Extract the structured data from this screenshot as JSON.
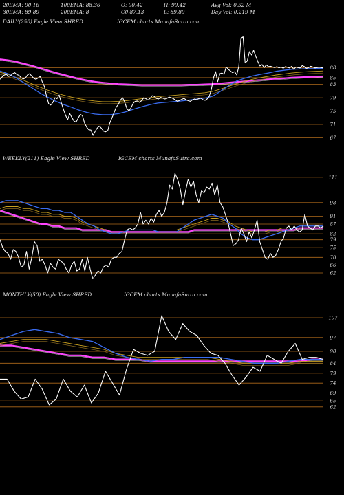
{
  "header": {
    "row1": [
      "20EMA: 90.16",
      "100EMA: 88.36",
      "O: 90.42",
      "H: 90.42",
      "Avg Vol: 0.52  M"
    ],
    "row2": [
      "30EMA: 89.89",
      "200EMA: 8",
      "C0.87.13",
      "L: 89.89",
      "Day Vol: 0.219 M"
    ]
  },
  "panels": [
    {
      "left": "DAILY(250) Eagle   View  SHRED",
      "right": "IGCEM charts MunafaSutra.com"
    },
    {
      "left": "WEEKLY(211) Eagle   View  SHRED",
      "right": "IGCEM charts MunafaSutra.com"
    },
    {
      "left": "MONTHLY(50) Eagle   View  SHRED",
      "right": "IGCEM charts MunafaSutra.com"
    }
  ],
  "colors": {
    "background": "#000000",
    "price": "#ffffff",
    "ema_fast": "#3a6cf0",
    "ema_slow": "#ff44ff",
    "ema_gold": "#c8a020",
    "level_line": "#b06a1a"
  },
  "chart_data": [
    {
      "type": "line",
      "title": "DAILY(250)",
      "ylim": [
        64,
        100
      ],
      "levels": [
        88,
        85,
        83,
        79,
        75,
        71,
        67
      ],
      "series": [
        {
          "role": "price",
          "values": [
            84.5,
            85.2,
            85.8,
            86.0,
            85.4,
            85.6,
            86.2,
            86.5,
            85.9,
            85.7,
            85.0,
            84.6,
            84.9,
            85.8,
            86.2,
            85.5,
            84.8,
            84.5,
            84.9,
            85.4,
            83.8,
            82.4,
            79.5,
            77.2,
            76.8,
            77.6,
            79.0,
            78.7,
            79.8,
            77.5,
            75.5,
            73.8,
            72.4,
            74.2,
            73.1,
            72.0,
            71.7,
            72.9,
            74.0,
            73.6,
            71.4,
            70.2,
            69.4,
            69.3,
            67.7,
            68.9,
            69.9,
            70.5,
            69.8,
            69.0,
            68.8,
            69.2,
            71.5,
            73.0,
            74.6,
            76.2,
            77.0,
            78.3,
            79.0,
            77.7,
            75.8,
            75.0,
            76.0,
            77.3,
            77.9,
            78.0,
            77.6,
            78.1,
            79.0,
            78.7,
            78.3,
            78.8,
            79.6,
            79.4,
            78.8,
            78.6,
            79.1,
            78.9,
            78.6,
            78.8,
            79.2,
            79.0,
            78.7,
            78.3,
            77.9,
            78.2,
            78.5,
            78.8,
            78.4,
            78.1,
            77.9,
            78.3,
            78.6,
            78.4,
            78.7,
            78.9,
            78.4,
            78.2,
            78.6,
            79.4,
            81.5,
            85.0,
            86.8,
            83.8,
            86.2,
            86.4,
            86.0,
            88.2,
            87.5,
            87.0,
            86.5,
            86.8,
            85.8,
            88.4,
            96.8,
            97.2,
            89.4,
            90.0,
            92.8,
            91.8,
            93.2,
            91.4,
            89.8,
            88.5,
            88.9,
            88.0,
            88.8,
            88.3,
            88.4,
            88.2,
            88.0,
            88.3,
            87.9,
            88.2,
            87.8,
            88.3,
            88.1,
            87.9,
            88.4,
            87.5,
            88.2,
            88.0,
            87.9,
            88.6,
            88.3,
            87.8,
            88.0,
            88.4,
            88.2,
            87.9,
            88.0,
            88.1,
            88.0,
            87.9
          ]
        },
        {
          "role": "ema_fast",
          "values": [
            87.0,
            86.2,
            85.0,
            83.5,
            82.0,
            80.5,
            79.2,
            78.0,
            77.0,
            76.2,
            75.3,
            74.6,
            74.1,
            73.9,
            73.9,
            74.2,
            74.8,
            75.6,
            76.3,
            76.9,
            77.4,
            77.6,
            77.8,
            78.0,
            78.3,
            78.6,
            78.9,
            79.5,
            81.0,
            82.6,
            84.0,
            84.8,
            85.5,
            86.0,
            86.4,
            86.9,
            87.2,
            87.5,
            87.6,
            87.7,
            87.7,
            87.8
          ]
        },
        {
          "role": "ema_gold",
          "values": [
            86.6,
            86.0,
            85.1,
            84.2,
            83.2,
            82.2,
            81.3,
            80.5,
            79.8,
            79.2,
            78.7,
            78.3,
            78.0,
            77.8,
            77.8,
            77.9,
            78.1,
            78.4,
            78.7,
            79.0,
            79.3,
            79.5,
            79.7,
            79.9,
            80.1,
            80.3,
            80.5,
            80.9,
            81.6,
            82.4,
            83.2,
            83.9,
            84.5,
            85.0,
            85.4,
            85.8,
            86.1,
            86.4,
            86.6,
            86.8,
            86.9,
            87.0
          ]
        },
        {
          "role": "ema_slow",
          "values": [
            90.5,
            90.2,
            89.8,
            89.2,
            88.6,
            87.9,
            87.2,
            86.5,
            85.9,
            85.3,
            84.7,
            84.2,
            83.8,
            83.5,
            83.3,
            83.1,
            83.0,
            82.9,
            82.8,
            82.8,
            82.8,
            82.8,
            82.8,
            82.8,
            82.9,
            82.9,
            83.0,
            83.1,
            83.3,
            83.5,
            83.7,
            83.9,
            84.1,
            84.3,
            84.5,
            84.7,
            84.8,
            85.0,
            85.1,
            85.2,
            85.3,
            85.4
          ]
        }
      ]
    },
    {
      "type": "line",
      "title": "WEEKLY(211)",
      "ylim": [
        56,
        118
      ],
      "levels": [
        111,
        98,
        91,
        87,
        82,
        79,
        75,
        70,
        66,
        62
      ],
      "series": [
        {
          "role": "price",
          "values": [
            79,
            75,
            73,
            72,
            69,
            74,
            73,
            70,
            65,
            66,
            73,
            64,
            70,
            78,
            76,
            68,
            69,
            66,
            62,
            67,
            65,
            64,
            69,
            68,
            67,
            64,
            62,
            66,
            68,
            63,
            64,
            69,
            63,
            70,
            64,
            59,
            61,
            63,
            62,
            65,
            66,
            65,
            69,
            70,
            70,
            72,
            73,
            79,
            84,
            85,
            84,
            85,
            87,
            93,
            87,
            89,
            87,
            90,
            88,
            92,
            94,
            91,
            93,
            98,
            107,
            105,
            113,
            110,
            105,
            97,
            104,
            110,
            106,
            109,
            102,
            98,
            104,
            103,
            106,
            105,
            108,
            102,
            107,
            98,
            96,
            92,
            88,
            82,
            76,
            77,
            79,
            85,
            82,
            78,
            83,
            80,
            84,
            89,
            78,
            74,
            70,
            69,
            72,
            70,
            71,
            74,
            78,
            80,
            85,
            86,
            84,
            86,
            84,
            83,
            84,
            92,
            86,
            85,
            84,
            86,
            86,
            85,
            86
          ]
        },
        {
          "role": "ema_fast",
          "values": [
            98,
            99,
            99,
            99,
            98,
            97,
            96,
            95,
            95,
            94,
            94,
            93,
            93,
            91,
            89,
            87,
            86,
            84,
            83,
            82,
            82,
            83,
            84,
            84,
            84,
            84,
            84,
            83,
            83,
            83,
            83,
            85,
            87,
            89,
            90,
            91,
            92,
            91,
            90,
            87,
            85,
            82,
            80,
            79,
            79,
            80,
            81,
            82,
            83,
            84,
            85,
            86,
            86,
            86,
            86,
            86
          ]
        },
        {
          "role": "ema_gold",
          "values": [
            95,
            96,
            96,
            96,
            95,
            95,
            94,
            93,
            93,
            92,
            92,
            91,
            91,
            90,
            88,
            87,
            86,
            85,
            84,
            84,
            84,
            84,
            84,
            84,
            84,
            84,
            84,
            84,
            84,
            84,
            84,
            85,
            86,
            87,
            88,
            89,
            90,
            90,
            89,
            88,
            86,
            85,
            84,
            83,
            83,
            83,
            84,
            84,
            85,
            85,
            85,
            86,
            86,
            86,
            86,
            86
          ]
        },
        {
          "role": "ema_slow",
          "values": [
            94,
            93,
            92,
            91,
            90,
            89,
            88,
            87,
            87,
            86,
            86,
            85,
            85,
            85,
            84,
            84,
            84,
            84,
            84,
            83,
            83,
            83,
            83,
            83,
            83,
            83,
            83,
            83,
            83,
            83,
            83,
            83,
            83,
            84,
            84,
            84,
            84,
            84,
            84,
            84,
            84,
            84,
            84,
            84,
            84,
            84,
            84,
            84,
            84,
            84,
            84,
            85,
            85,
            85,
            85,
            85
          ]
        }
      ]
    },
    {
      "type": "line",
      "title": "MONTHLY(50)",
      "ylim": [
        55,
        116
      ],
      "levels": [
        107,
        97,
        90,
        84,
        79,
        74,
        69,
        65,
        62
      ],
      "series": [
        {
          "role": "price",
          "values": [
            76,
            76,
            70,
            66,
            67,
            76,
            71,
            63,
            66,
            76,
            70,
            67,
            73,
            64,
            69,
            80,
            74,
            68,
            81,
            91,
            89,
            88,
            90,
            108,
            100,
            96,
            104,
            100,
            98,
            93,
            89,
            88,
            84,
            78,
            73,
            77,
            82,
            80,
            88,
            86,
            84,
            90,
            94,
            86,
            87,
            87,
            86
          ]
        },
        {
          "role": "ema_fast",
          "values": [
            96,
            98,
            100,
            101,
            100,
            99,
            97,
            96,
            95,
            92,
            89,
            87,
            86,
            85,
            86,
            86,
            87,
            87,
            87,
            87,
            86,
            85,
            84,
            84,
            84,
            85,
            86,
            86,
            86
          ]
        },
        {
          "role": "ema_gold",
          "values": [
            94,
            95,
            96,
            96,
            96,
            95,
            94,
            93,
            92,
            91,
            89,
            88,
            87,
            87,
            87,
            87,
            87,
            87,
            87,
            86,
            85,
            84,
            84,
            84,
            84,
            84,
            85,
            85,
            85
          ]
        },
        {
          "role": "ema_slow",
          "values": [
            93,
            93,
            92,
            91,
            90,
            89,
            88,
            88,
            87,
            87,
            86,
            86,
            86,
            85,
            85,
            85,
            85,
            85,
            85,
            85,
            85,
            85,
            85,
            85,
            85,
            85,
            85,
            86,
            86
          ]
        }
      ]
    }
  ]
}
